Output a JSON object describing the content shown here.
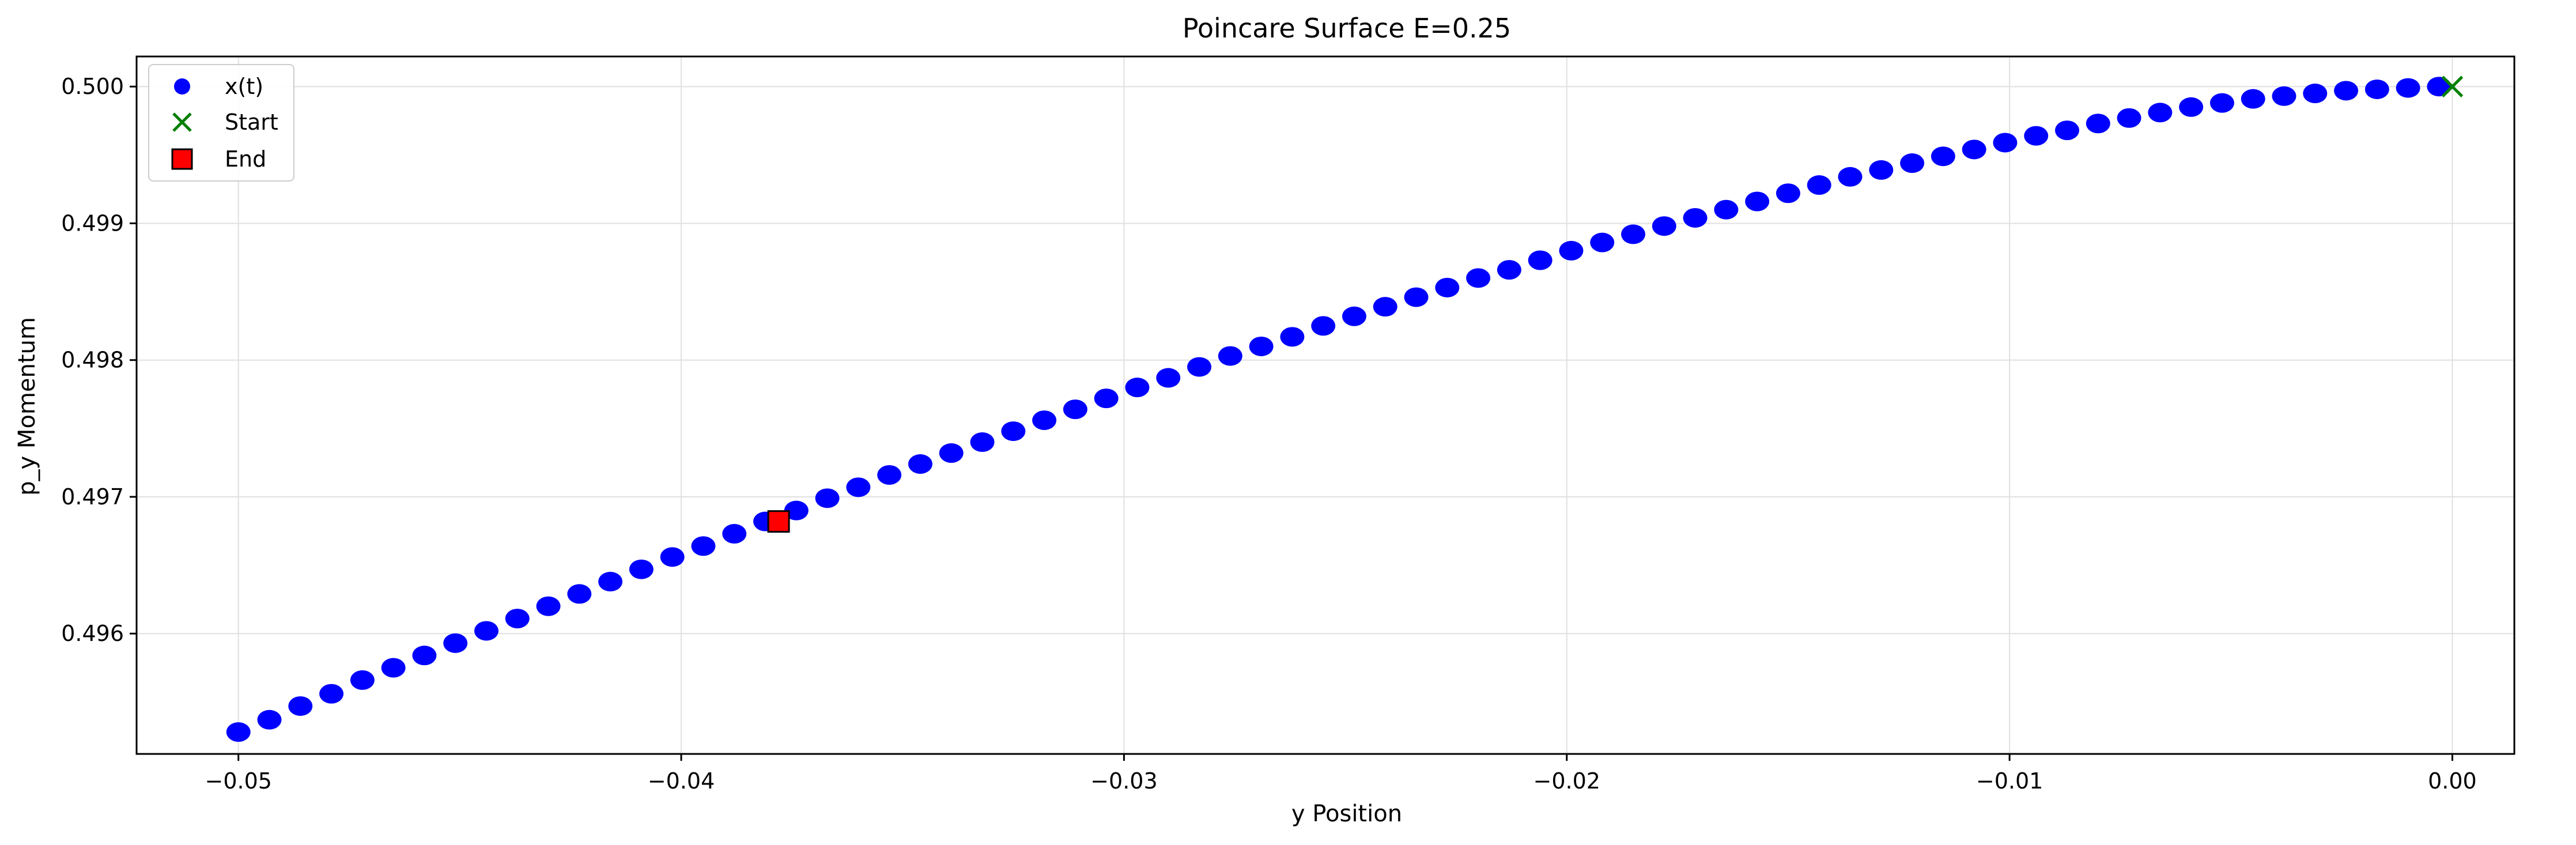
{
  "chart_data": {
    "type": "scatter",
    "title": "Poincare Surface E=0.25",
    "xlabel": "y Position",
    "ylabel": "p_y Momentum",
    "xlim": [
      -0.0523,
      0.0014
    ],
    "ylim": [
      0.49512,
      0.50022
    ],
    "x_ticks": [
      -0.05,
      -0.04,
      -0.03,
      -0.02,
      -0.01,
      0.0
    ],
    "x_tick_labels": [
      "−0.05",
      "−0.04",
      "−0.03",
      "−0.02",
      "−0.01",
      "0.00"
    ],
    "y_ticks": [
      0.496,
      0.497,
      0.498,
      0.499,
      0.5
    ],
    "y_tick_labels": [
      "0.496",
      "0.497",
      "0.498",
      "0.499",
      "0.500"
    ],
    "grid": true,
    "legend": {
      "placement": "top-left",
      "entries": [
        {
          "label": "x(t)",
          "marker": "circle",
          "color": "#0000ff"
        },
        {
          "label": "Start",
          "marker": "x",
          "color": "#008000"
        },
        {
          "label": "End",
          "marker": "square",
          "color": "#ff0000"
        }
      ]
    },
    "series": [
      {
        "name": "x(t)",
        "color": "#0000ff",
        "marker": "circle",
        "x": [
          -0.05,
          -0.0493,
          -0.0486,
          -0.0479,
          -0.0472,
          -0.0465,
          -0.0458,
          -0.0451,
          -0.0444,
          -0.0437,
          -0.043,
          -0.0423,
          -0.0416,
          -0.0409,
          -0.0402,
          -0.0395,
          -0.0388,
          -0.0381,
          -0.0374,
          -0.0367,
          -0.036,
          -0.0353,
          -0.0346,
          -0.0339,
          -0.0332,
          -0.0325,
          -0.0318,
          -0.0311,
          -0.0304,
          -0.0297,
          -0.029,
          -0.0283,
          -0.0276,
          -0.0269,
          -0.0262,
          -0.0255,
          -0.0248,
          -0.0241,
          -0.0234,
          -0.0227,
          -0.022,
          -0.0213,
          -0.0206,
          -0.0199,
          -0.0192,
          -0.0185,
          -0.0178,
          -0.0171,
          -0.0164,
          -0.0157,
          -0.015,
          -0.0143,
          -0.0136,
          -0.0129,
          -0.0122,
          -0.0115,
          -0.0108,
          -0.0101,
          -0.0094,
          -0.0087,
          -0.008,
          -0.0073,
          -0.0066,
          -0.0059,
          -0.0052,
          -0.0045,
          -0.0038,
          -0.0031,
          -0.0024,
          -0.0017,
          -0.001,
          -0.0003
        ],
        "y": [
          0.49528,
          0.49537,
          0.49547,
          0.49556,
          0.49566,
          0.49575,
          0.49584,
          0.49593,
          0.49602,
          0.49611,
          0.4962,
          0.49629,
          0.49638,
          0.49647,
          0.49656,
          0.49664,
          0.49673,
          0.49682,
          0.4969,
          0.49699,
          0.49707,
          0.49716,
          0.49724,
          0.49732,
          0.4974,
          0.49748,
          0.49756,
          0.49764,
          0.49772,
          0.4978,
          0.49787,
          0.49795,
          0.49803,
          0.4981,
          0.49817,
          0.49825,
          0.49832,
          0.49839,
          0.49846,
          0.49853,
          0.4986,
          0.49866,
          0.49873,
          0.4988,
          0.49886,
          0.49892,
          0.49898,
          0.49904,
          0.4991,
          0.49916,
          0.49922,
          0.49928,
          0.49934,
          0.49939,
          0.49944,
          0.49949,
          0.49954,
          0.49959,
          0.49964,
          0.49968,
          0.49973,
          0.49977,
          0.49981,
          0.49985,
          0.49988,
          0.49991,
          0.49993,
          0.49995,
          0.49997,
          0.49998,
          0.49999,
          0.5
        ]
      }
    ],
    "markers": {
      "start": {
        "label": "Start",
        "x": 0.0,
        "y": 0.5,
        "color": "#008000",
        "marker": "x"
      },
      "end": {
        "label": "End",
        "x": -0.0378,
        "y": 0.49682,
        "color": "#ff0000",
        "edge_color": "#000000",
        "marker": "square"
      }
    },
    "colors": {
      "grid": "#e0e0e0",
      "axis": "#000000",
      "background": "#ffffff"
    }
  }
}
